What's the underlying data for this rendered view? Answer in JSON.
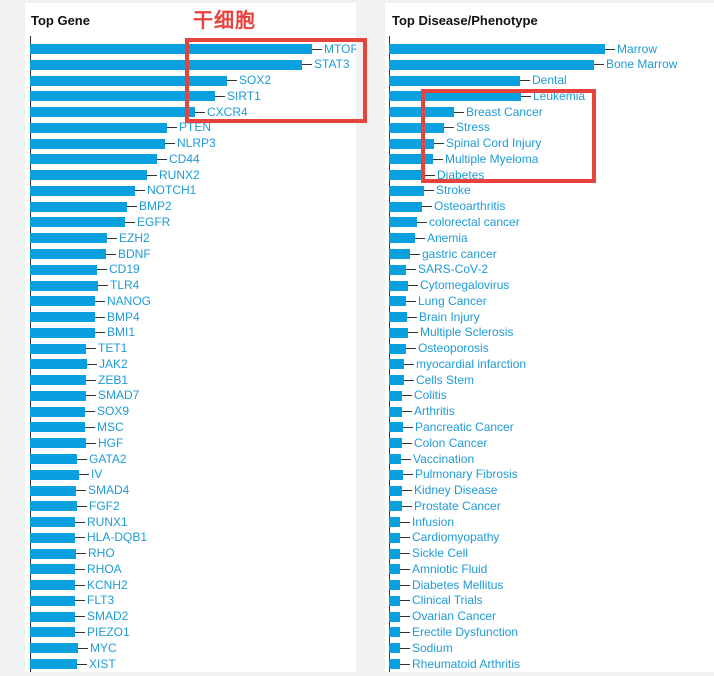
{
  "colors": {
    "bar": "#09A0E0",
    "label": "#1E9BD7",
    "axis": "#333333",
    "annotation_red": "#E8423D",
    "page_background": "#F1F1F1",
    "panel_background": "#FFFFFF",
    "title_text": "#111111"
  },
  "annotations": {
    "text": "干细胞",
    "highlighted_genes": [
      "MTOR",
      "STAT3",
      "SOX2",
      "SIRT1",
      "CXCR4"
    ],
    "highlighted_diseases": [
      "Leukemia",
      "Breast Cancer",
      "Stress",
      "Spinal Cord Injury",
      "Multiple Myeloma",
      "Diabetes"
    ]
  },
  "chart_data": [
    {
      "type": "bar",
      "orientation": "horizontal",
      "title": "Top Gene",
      "value_axis_visible": false,
      "values_unit": "relative bar length in px (no numeric axis shown)",
      "legend": "none",
      "grid": false,
      "categories": [
        "MTOR",
        "STAT3",
        "SOX2",
        "SIRT1",
        "CXCR4",
        "PTEN",
        "NLRP3",
        "CD44",
        "RUNX2",
        "NOTCH1",
        "BMP2",
        "EGFR",
        "EZH2",
        "BDNF",
        "CD19",
        "TLR4",
        "NANOG",
        "BMP4",
        "BMI1",
        "TET1",
        "JAK2",
        "ZEB1",
        "SMAD7",
        "SOX9",
        "MSC",
        "HGF",
        "GATA2",
        "IV",
        "SMAD4",
        "FGF2",
        "RUNX1",
        "HLA-DQB1",
        "RHO",
        "RHOA",
        "KCNH2",
        "FLT3",
        "SMAD2",
        "PIEZO1",
        "MYC",
        "XIST"
      ],
      "values": [
        282,
        272,
        197,
        185,
        165,
        137,
        135,
        127,
        117,
        105,
        97,
        95,
        77,
        76,
        67,
        68,
        65,
        65,
        65,
        56,
        57,
        56,
        56,
        55,
        55,
        56,
        47,
        49,
        46,
        47,
        45,
        45,
        46,
        45,
        45,
        45,
        45,
        45,
        48,
        47
      ]
    },
    {
      "type": "bar",
      "orientation": "horizontal",
      "title": "Top Disease/Phenotype",
      "value_axis_visible": false,
      "values_unit": "relative bar length in px (no numeric axis shown)",
      "legend": "none",
      "grid": false,
      "categories": [
        "Marrow",
        "Bone Marrow",
        "Dental",
        "Leukemia",
        "Breast Cancer",
        "Stress",
        "Spinal Cord Injury",
        "Multiple Myeloma",
        "Diabetes",
        "Stroke",
        "Osteoarthritis",
        "colorectal cancer",
        "Anemia",
        "gastric cancer",
        "SARS-CoV-2",
        "Cytomegalovirus",
        "Lung Cancer",
        "Brain Injury",
        "Multiple Sclerosis",
        "Osteoporosis",
        "myocardial infarction",
        "Cells Stem",
        "Colitis",
        "Arthritis",
        "Pancreatic Cancer",
        "Colon Cancer",
        "Vaccination",
        "Pulmonary Fibrosis",
        "Kidney Disease",
        "Prostate Cancer",
        "Infusion",
        "Cardiomyopathy",
        "Sickle Cell",
        "Amniotic Fluid",
        "Diabetes Mellitus",
        "Clinical Trials",
        "Ovarian Cancer",
        "Erectile Dysfunction",
        "Sodium",
        "Rheumatoid Arthritis"
      ],
      "values": [
        216,
        205,
        131,
        132,
        65,
        55,
        45,
        44,
        36,
        35,
        33,
        28,
        26,
        21,
        17,
        19,
        17,
        18,
        19,
        17,
        15,
        15,
        13,
        13,
        14,
        13,
        12,
        14,
        13,
        13,
        11,
        11,
        11,
        11,
        11,
        11,
        11,
        11,
        11,
        11
      ]
    }
  ]
}
